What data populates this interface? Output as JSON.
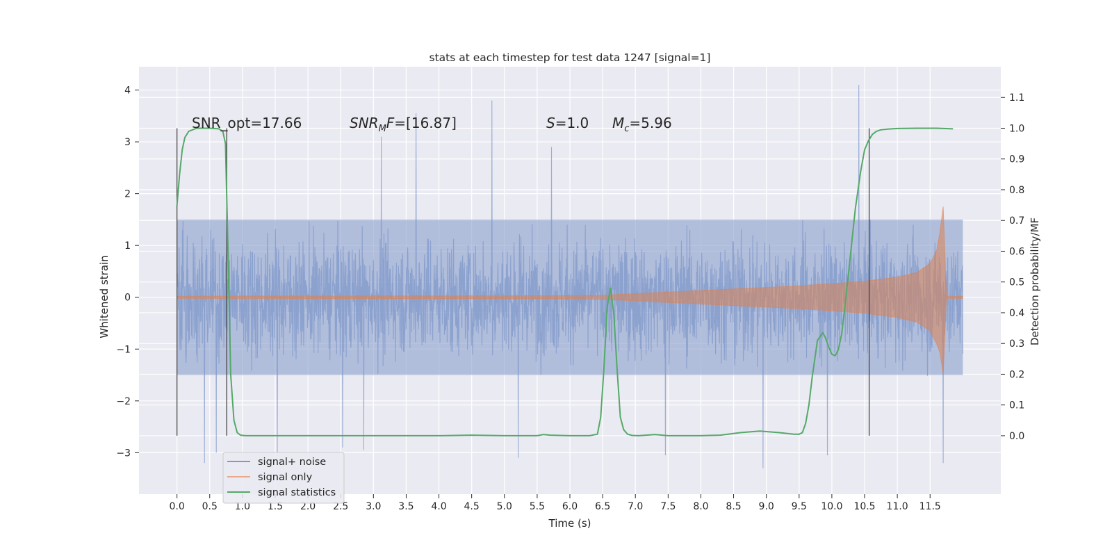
{
  "chart_data": {
    "type": "line",
    "title": "stats at each timestep for test data 1247 [signal=1]",
    "xlabel": "Time (s)",
    "ylabel_left": "Whitened strain",
    "ylabel_right": "Detection probability/MF",
    "xlim": [
      -0.58,
      12.58
    ],
    "ylim_left": [
      -3.8,
      4.45
    ],
    "ylim_right": [
      -0.19,
      1.2
    ],
    "grid": true,
    "x_ticks": [
      "0.0",
      "0.5",
      "1.0",
      "1.5",
      "2.0",
      "2.5",
      "3.0",
      "3.5",
      "4.0",
      "4.5",
      "5.0",
      "5.5",
      "6.0",
      "6.5",
      "7.0",
      "7.5",
      "8.0",
      "8.5",
      "9.0",
      "9.5",
      "10.0",
      "10.5",
      "11.0",
      "11.5"
    ],
    "y_ticks_left": [
      "−3",
      "−2",
      "−1",
      "0",
      "1",
      "2",
      "3",
      "4"
    ],
    "y_ticks_right": [
      "0.0",
      "0.1",
      "0.2",
      "0.3",
      "0.4",
      "0.5",
      "0.6",
      "0.7",
      "0.8",
      "0.9",
      "1.0",
      "1.1"
    ],
    "annotations": {
      "snr_opt": "SNR_opt=17.66",
      "snr_mf_main": "SNR",
      "snr_mf_sub": "M",
      "snr_mf_rest": "F=[16.87]",
      "s_main": "S",
      "s_rest": "=1.0",
      "mc_main": "M",
      "mc_sub": "c",
      "mc_rest": "=5.96"
    },
    "vertical_markers_x": [
      0.0,
      0.76,
      10.57
    ],
    "legend": {
      "position": "lower-left",
      "entries": [
        "signal+ noise",
        "signal only",
        "signal statistics"
      ]
    },
    "series": [
      {
        "name": "signal+ noise",
        "axis": "left",
        "color": "#7f98c9",
        "x_range": [
          0.0,
          12.0
        ],
        "typical_range": [
          -1.5,
          1.5
        ],
        "max": 4.1,
        "min": -3.25,
        "spikes": [
          [
            0.42,
            -3.2
          ],
          [
            0.6,
            -3.0
          ],
          [
            2.53,
            -2.9
          ],
          [
            2.85,
            -2.95
          ],
          [
            4.81,
            3.8
          ],
          [
            5.21,
            -3.1
          ],
          [
            9.93,
            -3.05
          ],
          [
            10.41,
            4.1
          ],
          [
            11.7,
            -3.2
          ],
          [
            3.65,
            3.55
          ],
          [
            8.95,
            -3.3
          ],
          [
            1.53,
            -3.0
          ],
          [
            7.46,
            -3.05
          ],
          [
            3.12,
            3.1
          ],
          [
            5.72,
            2.9
          ]
        ]
      },
      {
        "name": "signal only",
        "axis": "left",
        "color": "#dd8452",
        "x": [
          0.0,
          6.0,
          6.5,
          7.0,
          7.5,
          8.0,
          8.5,
          9.0,
          9.5,
          10.0,
          10.5,
          11.0,
          11.3,
          11.5,
          11.6,
          11.65,
          11.7,
          11.75,
          12.0
        ],
        "amplitude": [
          0.02,
          0.03,
          0.04,
          0.07,
          0.1,
          0.13,
          0.16,
          0.19,
          0.22,
          0.26,
          0.31,
          0.39,
          0.48,
          0.65,
          0.9,
          1.25,
          1.75,
          0.02,
          0.02
        ]
      },
      {
        "name": "signal statistics",
        "axis": "right",
        "color": "#55a868",
        "x": [
          0.0,
          0.04,
          0.08,
          0.12,
          0.18,
          0.3,
          0.5,
          0.64,
          0.7,
          0.74,
          0.78,
          0.82,
          0.87,
          0.92,
          0.97,
          1.05,
          1.5,
          2.0,
          2.5,
          3.0,
          3.5,
          4.0,
          4.5,
          5.0,
          5.5,
          5.6,
          5.7,
          6.0,
          6.3,
          6.42,
          6.47,
          6.52,
          6.57,
          6.62,
          6.67,
          6.72,
          6.77,
          6.82,
          6.88,
          6.95,
          7.05,
          7.3,
          7.5,
          8.0,
          8.3,
          8.6,
          8.9,
          9.2,
          9.42,
          9.5,
          9.55,
          9.6,
          9.65,
          9.7,
          9.78,
          9.86,
          9.9,
          9.95,
          10.0,
          10.05,
          10.1,
          10.15,
          10.2,
          10.28,
          10.36,
          10.44,
          10.5,
          10.56,
          10.62,
          10.68,
          10.75,
          10.85,
          11.0,
          11.3,
          11.6,
          11.85
        ],
        "y": [
          0.75,
          0.85,
          0.93,
          0.97,
          0.99,
          1.0,
          1.0,
          0.998,
          0.99,
          0.95,
          0.6,
          0.2,
          0.05,
          0.01,
          0.002,
          0.0,
          0.0,
          0.0,
          0.0,
          0.0,
          0.0,
          0.0,
          0.002,
          0.0,
          0.0,
          0.004,
          0.002,
          0.0,
          0.0,
          0.005,
          0.06,
          0.22,
          0.42,
          0.48,
          0.4,
          0.22,
          0.06,
          0.02,
          0.005,
          0.001,
          0.0,
          0.004,
          0.0,
          0.0,
          0.002,
          0.01,
          0.015,
          0.01,
          0.005,
          0.005,
          0.01,
          0.04,
          0.1,
          0.19,
          0.31,
          0.335,
          0.32,
          0.29,
          0.265,
          0.26,
          0.28,
          0.33,
          0.42,
          0.58,
          0.74,
          0.86,
          0.93,
          0.96,
          0.98,
          0.99,
          0.995,
          0.997,
          0.999,
          1.0,
          1.0,
          0.998
        ]
      }
    ]
  }
}
